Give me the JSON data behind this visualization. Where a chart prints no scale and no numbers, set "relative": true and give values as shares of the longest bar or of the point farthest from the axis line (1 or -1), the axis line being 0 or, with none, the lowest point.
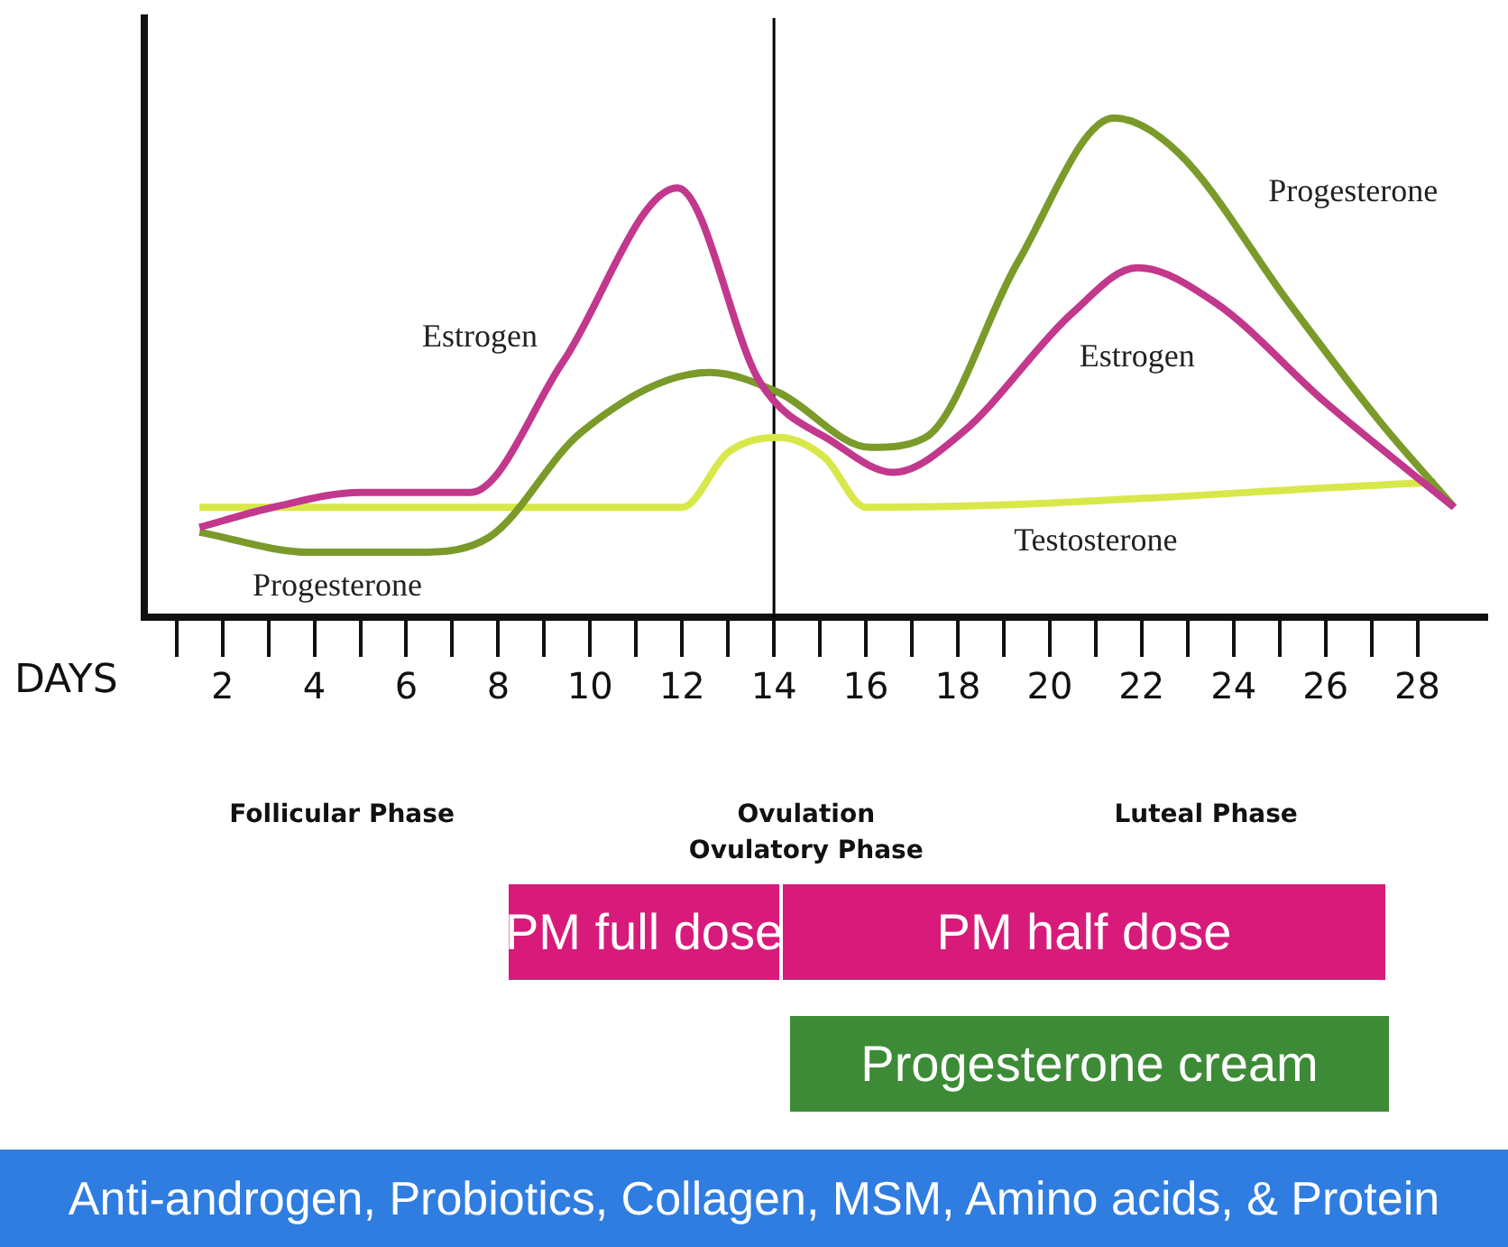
{
  "chart_data": [
    {
      "type": "line",
      "relative": true,
      "xlabel": "DAYS",
      "legend": false,
      "grid": false,
      "marker": "none",
      "line_style": "solid",
      "xlim": [
        0.3,
        29.5
      ],
      "xticks": [
        2,
        4,
        6,
        8,
        10,
        12,
        14,
        16,
        18,
        20,
        22,
        24,
        26,
        28
      ],
      "series": [
        {
          "name": "Estrogen",
          "color": "#c2388c",
          "x": [
            1.5,
            3.1,
            5,
            7.4,
            9.4,
            11.9,
            13.7,
            15.3,
            16.6,
            18.1,
            20.5,
            21.9,
            23.6,
            26,
            28.8
          ],
          "values": [
            0.18,
            0.22,
            0.25,
            0.25,
            0.51,
            0.86,
            0.47,
            0.35,
            0.29,
            0.37,
            0.61,
            0.7,
            0.63,
            0.43,
            0.22
          ]
        },
        {
          "name": "Progesterone",
          "color": "#7a9a2a",
          "x": [
            1.5,
            3.9,
            6.2,
            7.8,
            9.8,
            12.6,
            14.1,
            16.1,
            17.3,
            19.3,
            21.4,
            22.8,
            25.2,
            27.2,
            28.8
          ],
          "values": [
            0.17,
            0.13,
            0.13,
            0.16,
            0.37,
            0.49,
            0.45,
            0.34,
            0.36,
            0.71,
            1,
            0.93,
            0.63,
            0.39,
            0.22
          ]
        },
        {
          "name": "Testosterone",
          "color": "#d8e84a",
          "x": [
            1.5,
            12,
            13,
            14.1,
            15.1,
            16,
            28.4
          ],
          "values": [
            0.22,
            0.22,
            0.33,
            0.36,
            0.32,
            0.22,
            0.27
          ]
        }
      ],
      "ref_lines": [
        {
          "axis": "x",
          "value": 14,
          "color": "#000000"
        }
      ],
      "annotations": [
        "Estrogen",
        "Progesterone",
        "Follicular Phase",
        "Ovulation",
        "Ovulatory Phase",
        "Luteal Phase"
      ]
    },
    {
      "type": "other",
      "annotations": [
        "PM full dose",
        "PM half dose",
        "Progesterone cream",
        "Anti-androgen, Probiotics, Collagen, MSM, Amino acids, & Protein"
      ],
      "colors": [
        "#d81b7a",
        "#d81b7a",
        "#3d8b37",
        "#2f7de1"
      ]
    }
  ]
}
